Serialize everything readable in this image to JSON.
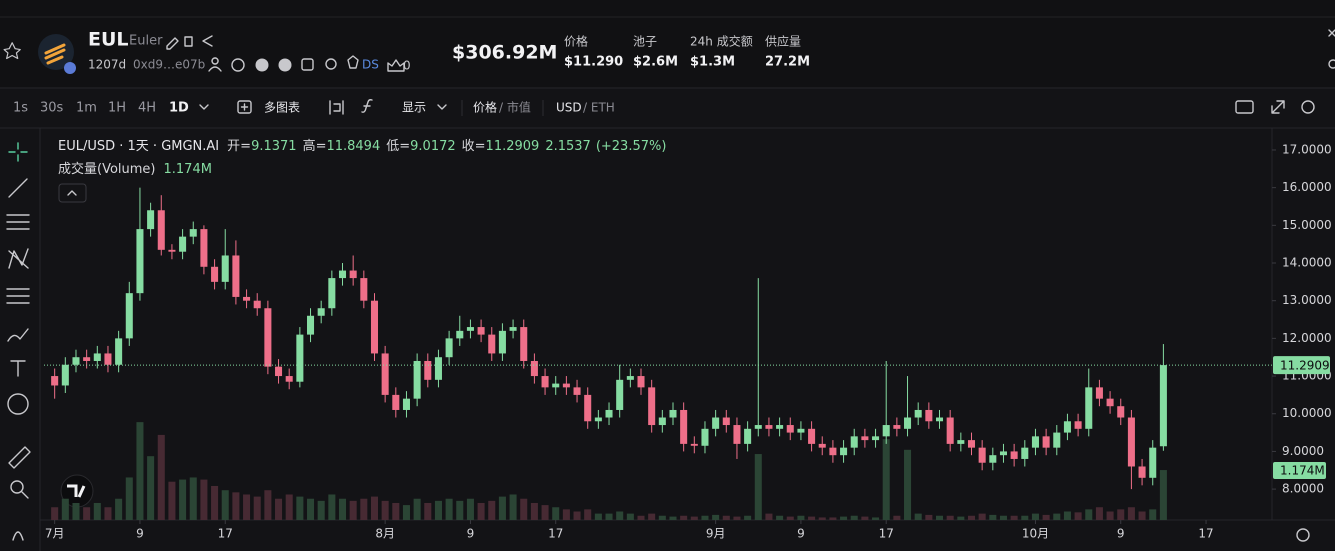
{
  "header": {
    "symbol": "EUL",
    "name": "Euler",
    "age": "1207d",
    "address": "0xd9…e07b",
    "ds": "DS",
    "holders": "0",
    "market_cap": "$306.92M",
    "stats": [
      {
        "label": "价格",
        "value": "$11.290"
      },
      {
        "label": "池子",
        "value": "$2.6M"
      },
      {
        "label": "24h 成交额",
        "value": "$1.3M"
      },
      {
        "label": "供应量",
        "value": "27.2M"
      }
    ]
  },
  "toolbar": {
    "intervals": [
      "1s",
      "30s",
      "1m",
      "1H",
      "4H",
      "1D"
    ],
    "multi_chart": "多图表",
    "display": "显示",
    "price": "价格",
    "market_cap": "/ 市值",
    "usd": "USD",
    "eth": "/ ETH"
  },
  "chart_data": {
    "type": "candlestick",
    "title": "EUL/USD · 1天 · GMGN.AI",
    "open_label": "开=",
    "high_label": "高=",
    "low_label": "低=",
    "close_label": "收=",
    "change": 2.1537,
    "change_label": "(+23.57%)",
    "volume_title": "成交量(Volume)",
    "open": [
      11.0,
      10.75,
      11.3,
      11.5,
      11.4,
      11.6,
      11.3,
      12.0,
      13.2,
      14.9,
      15.4,
      14.35,
      14.3,
      14.7,
      14.9,
      13.9,
      13.5,
      14.2,
      13.1,
      13.0,
      12.8,
      11.25,
      11.0,
      10.85,
      12.1,
      12.6,
      12.8,
      13.6,
      13.8,
      13.6,
      13.0,
      11.6,
      10.5,
      10.1,
      10.4,
      11.4,
      10.9,
      11.5,
      12.0,
      12.2,
      12.3,
      12.1,
      11.6,
      12.2,
      12.3,
      11.4,
      11.0,
      10.7,
      10.8,
      10.7,
      10.5,
      9.8,
      9.9,
      10.1,
      10.9,
      11.0,
      10.7,
      9.7,
      9.9,
      10.1,
      9.2,
      9.15,
      9.6,
      9.9,
      9.7,
      9.2,
      9.6,
      9.7,
      9.6,
      9.7,
      9.5,
      9.6,
      9.2,
      9.1,
      8.9,
      9.1,
      9.4,
      9.3,
      9.4,
      9.7,
      9.6,
      9.9,
      10.1,
      9.8,
      9.9,
      9.2,
      9.3,
      9.1,
      8.7,
      8.9,
      9.0,
      8.8,
      9.1,
      9.4,
      9.1,
      9.5,
      9.8,
      9.6,
      10.7,
      10.4,
      10.2,
      9.9,
      8.6,
      8.3,
      9.1371
    ],
    "high": [
      11.2,
      11.5,
      11.7,
      11.7,
      11.8,
      11.8,
      12.2,
      13.5,
      16.0,
      15.6,
      15.8,
      14.5,
      14.9,
      15.1,
      15.0,
      14.1,
      14.9,
      14.6,
      13.3,
      13.2,
      13.0,
      11.45,
      11.2,
      12.3,
      12.8,
      13.0,
      13.8,
      14.0,
      14.2,
      13.8,
      13.2,
      11.8,
      10.7,
      10.6,
      11.6,
      11.6,
      11.7,
      12.2,
      12.6,
      12.5,
      12.5,
      12.3,
      12.4,
      12.5,
      12.5,
      11.6,
      11.2,
      11.0,
      11.0,
      10.9,
      10.7,
      10.1,
      10.3,
      11.3,
      11.2,
      11.2,
      10.9,
      10.1,
      10.3,
      10.3,
      9.4,
      9.8,
      10.1,
      10.1,
      9.9,
      9.8,
      13.6,
      9.9,
      9.9,
      9.9,
      9.8,
      9.8,
      9.4,
      9.3,
      9.3,
      9.6,
      9.6,
      9.6,
      11.4,
      9.9,
      11.0,
      10.3,
      10.3,
      10.1,
      10.1,
      9.5,
      9.5,
      9.3,
      9.1,
      9.2,
      9.2,
      9.3,
      9.6,
      9.6,
      9.7,
      10.0,
      10.0,
      11.2,
      10.9,
      10.6,
      10.4,
      10.1,
      8.8,
      9.3,
      11.8494
    ],
    "low": [
      10.4,
      10.55,
      11.1,
      11.2,
      11.2,
      11.1,
      11.1,
      11.8,
      13.0,
      14.7,
      14.2,
      14.1,
      14.1,
      14.5,
      13.7,
      13.3,
      13.3,
      12.9,
      12.8,
      12.6,
      11.05,
      10.8,
      10.65,
      10.7,
      11.9,
      12.4,
      12.6,
      13.4,
      13.4,
      12.8,
      11.4,
      10.3,
      9.9,
      9.9,
      10.2,
      10.7,
      10.7,
      11.3,
      11.8,
      12.0,
      11.9,
      11.4,
      11.4,
      12.0,
      11.2,
      10.8,
      10.5,
      10.5,
      10.5,
      10.3,
      9.6,
      9.6,
      9.7,
      9.9,
      10.7,
      10.5,
      9.5,
      9.5,
      9.7,
      9.0,
      8.95,
      8.95,
      9.4,
      9.5,
      8.8,
      9.0,
      9.4,
      9.4,
      9.4,
      9.3,
      9.3,
      9.0,
      8.9,
      8.7,
      8.7,
      8.9,
      9.1,
      9.1,
      9.2,
      9.4,
      9.4,
      9.7,
      9.6,
      9.6,
      9.0,
      9.0,
      8.9,
      8.5,
      8.5,
      8.7,
      8.6,
      8.6,
      8.9,
      8.9,
      8.9,
      9.3,
      9.4,
      9.4,
      10.2,
      10.0,
      9.7,
      8.0,
      8.1,
      8.1,
      9.0172
    ],
    "close": [
      10.75,
      11.3,
      11.5,
      11.4,
      11.6,
      11.3,
      12.0,
      13.2,
      14.9,
      15.4,
      14.35,
      14.3,
      14.7,
      14.9,
      13.9,
      13.5,
      14.2,
      13.1,
      13.0,
      12.8,
      11.25,
      11.0,
      10.85,
      12.1,
      12.6,
      12.8,
      13.6,
      13.8,
      13.6,
      13.0,
      11.6,
      10.5,
      10.1,
      10.4,
      11.4,
      10.9,
      11.5,
      12.0,
      12.2,
      12.3,
      12.1,
      11.6,
      12.2,
      12.3,
      11.4,
      11.0,
      10.7,
      10.8,
      10.7,
      10.5,
      9.8,
      9.9,
      10.1,
      10.9,
      11.0,
      10.7,
      9.7,
      9.9,
      10.1,
      9.2,
      9.15,
      9.6,
      9.9,
      9.7,
      9.2,
      9.6,
      9.7,
      9.6,
      9.7,
      9.5,
      9.6,
      9.2,
      9.1,
      8.9,
      9.1,
      9.4,
      9.3,
      9.4,
      9.7,
      9.6,
      9.9,
      10.1,
      9.8,
      9.9,
      9.2,
      9.3,
      9.1,
      8.7,
      8.9,
      9.0,
      8.8,
      9.1,
      9.4,
      9.1,
      9.5,
      9.8,
      9.6,
      10.7,
      10.4,
      10.2,
      9.9,
      8.6,
      8.3,
      9.1,
      11.2909
    ],
    "volume": [
      0.3,
      0.5,
      0.4,
      0.3,
      0.4,
      0.3,
      0.5,
      1.0,
      2.3,
      1.5,
      2.0,
      0.9,
      0.95,
      1.0,
      0.95,
      0.8,
      0.7,
      0.65,
      0.6,
      0.55,
      0.7,
      0.5,
      0.6,
      0.55,
      0.5,
      0.45,
      0.6,
      0.5,
      0.45,
      0.5,
      0.55,
      0.45,
      0.4,
      0.35,
      0.5,
      0.4,
      0.45,
      0.5,
      0.45,
      0.5,
      0.4,
      0.45,
      0.55,
      0.6,
      0.5,
      0.4,
      0.35,
      0.3,
      0.25,
      0.2,
      0.25,
      0.15,
      0.15,
      0.2,
      0.15,
      0.1,
      0.15,
      0.1,
      0.08,
      0.1,
      0.08,
      0.1,
      0.12,
      0.1,
      0.08,
      0.1,
      1.55,
      0.15,
      0.1,
      0.08,
      0.1,
      0.08,
      0.06,
      0.06,
      0.08,
      0.1,
      0.08,
      0.06,
      1.9,
      0.1,
      1.65,
      0.15,
      0.12,
      0.1,
      0.1,
      0.08,
      0.1,
      0.15,
      0.12,
      0.1,
      0.1,
      0.1,
      0.15,
      0.12,
      0.15,
      0.2,
      0.18,
      0.25,
      0.3,
      0.2,
      0.25,
      0.3,
      0.2,
      0.25,
      1.174
    ],
    "volume_labels": [
      null,
      null,
      null,
      null,
      null,
      null,
      null,
      null,
      null,
      null,
      null,
      null,
      null,
      null,
      null,
      null,
      null,
      null,
      null,
      null,
      null,
      null,
      null,
      null,
      null,
      null,
      null,
      null,
      null,
      null,
      null,
      null,
      null,
      null,
      null,
      null,
      null,
      null,
      null,
      null,
      null,
      null,
      null,
      null,
      null,
      null,
      null,
      null,
      null,
      null,
      null,
      null,
      null,
      null,
      null,
      null,
      null,
      null,
      null,
      null,
      null,
      null,
      null,
      null,
      null,
      null,
      null,
      null,
      null,
      null,
      null,
      null,
      null,
      null,
      null,
      null,
      null,
      null,
      null,
      null,
      null,
      null,
      null,
      null,
      null,
      null,
      null,
      null,
      null,
      null,
      null,
      null,
      null,
      null,
      null,
      null,
      null,
      null,
      null,
      null,
      null,
      null,
      null,
      null,
      "1.174M"
    ],
    "up_color": "#86dca2",
    "down_color": "#ee6f89",
    "up_volume_color": "#2b4535",
    "down_volume_color": "#472a33",
    "xlim": [
      -1,
      114
    ],
    "xticks": [
      {
        "value": 0,
        "label": "7月"
      },
      {
        "value": 8,
        "label": "9"
      },
      {
        "value": 16,
        "label": "17"
      },
      {
        "value": 31,
        "label": "8月"
      },
      {
        "value": 39,
        "label": "9"
      },
      {
        "value": 47,
        "label": "17"
      },
      {
        "value": 62,
        "label": "9月"
      },
      {
        "value": 70,
        "label": "9"
      },
      {
        "value": 78,
        "label": "17"
      },
      {
        "value": 92,
        "label": "10月"
      },
      {
        "value": 100,
        "label": "9"
      },
      {
        "value": 108,
        "label": "17"
      }
    ],
    "ylim": [
      7.18,
      17.53
    ],
    "yticks": [
      {
        "value": 8,
        "label": "8.0000"
      },
      {
        "value": 9,
        "label": "9.0000"
      },
      {
        "value": 10,
        "label": "10.0000"
      },
      {
        "value": 11,
        "label": "11.0000"
      },
      {
        "value": 12,
        "label": "12.0000"
      },
      {
        "value": 13,
        "label": "13.0000"
      },
      {
        "value": 14,
        "label": "14.0000"
      },
      {
        "value": 15,
        "label": "15.0000"
      },
      {
        "value": 16,
        "label": "16.0000"
      },
      {
        "value": 17,
        "label": "17.0000"
      }
    ],
    "volume_ylim": [
      0,
      2.75
    ],
    "grid": false
  }
}
